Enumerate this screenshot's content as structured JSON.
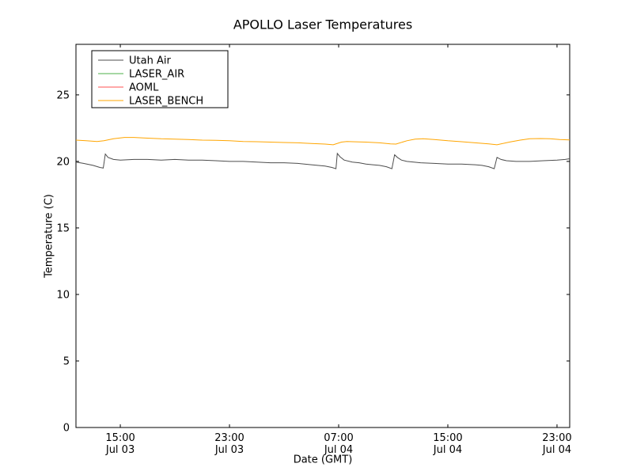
{
  "chart_data": {
    "type": "line",
    "title": "APOLLO Laser Temperatures",
    "xlabel": "Date (GMT)",
    "ylabel": "Temperature (C)",
    "x_unit_note": "hours since Jul 03 00:00 GMT",
    "xlim": [
      11.75,
      47.93
    ],
    "ylim": [
      0,
      28.8
    ],
    "grid": false,
    "legend_position": "upper left",
    "background_color": "#ffffff",
    "axes_color": "#000000",
    "x_ticks": [
      {
        "t": 15,
        "time": "15:00",
        "date": "Jul 03"
      },
      {
        "t": 23,
        "time": "23:00",
        "date": "Jul 03"
      },
      {
        "t": 31,
        "time": "07:00",
        "date": "Jul 04"
      },
      {
        "t": 39,
        "time": "15:00",
        "date": "Jul 04"
      },
      {
        "t": 47,
        "time": "23:00",
        "date": "Jul 04"
      }
    ],
    "y_ticks": [
      0,
      5,
      10,
      15,
      20,
      25
    ],
    "series": [
      {
        "name": "Utah Air",
        "color": "#4d4d4d",
        "points": [
          [
            11.75,
            19.95
          ],
          [
            12.3,
            19.85
          ],
          [
            13.0,
            19.7
          ],
          [
            13.5,
            19.55
          ],
          [
            13.75,
            19.5
          ],
          [
            13.9,
            20.55
          ],
          [
            14.1,
            20.3
          ],
          [
            14.5,
            20.15
          ],
          [
            15.0,
            20.1
          ],
          [
            16,
            20.15
          ],
          [
            17,
            20.15
          ],
          [
            18,
            20.1
          ],
          [
            19,
            20.15
          ],
          [
            20,
            20.1
          ],
          [
            21,
            20.1
          ],
          [
            22,
            20.05
          ],
          [
            23,
            20.0
          ],
          [
            24,
            20.0
          ],
          [
            25,
            19.95
          ],
          [
            26,
            19.9
          ],
          [
            27,
            19.9
          ],
          [
            28,
            19.85
          ],
          [
            29,
            19.75
          ],
          [
            30,
            19.65
          ],
          [
            30.5,
            19.55
          ],
          [
            30.8,
            19.45
          ],
          [
            30.9,
            20.6
          ],
          [
            31.1,
            20.35
          ],
          [
            31.4,
            20.1
          ],
          [
            32,
            19.95
          ],
          [
            32.5,
            19.9
          ],
          [
            33,
            19.8
          ],
          [
            33.5,
            19.75
          ],
          [
            34,
            19.7
          ],
          [
            34.5,
            19.6
          ],
          [
            34.9,
            19.45
          ],
          [
            35.1,
            20.5
          ],
          [
            35.3,
            20.3
          ],
          [
            35.6,
            20.1
          ],
          [
            36,
            20.0
          ],
          [
            36.5,
            19.95
          ],
          [
            37,
            19.9
          ],
          [
            38,
            19.85
          ],
          [
            39,
            19.8
          ],
          [
            40,
            19.8
          ],
          [
            41,
            19.75
          ],
          [
            41.5,
            19.7
          ],
          [
            42,
            19.6
          ],
          [
            42.4,
            19.45
          ],
          [
            42.6,
            20.3
          ],
          [
            42.9,
            20.15
          ],
          [
            43.3,
            20.05
          ],
          [
            44,
            20.0
          ],
          [
            45,
            20.0
          ],
          [
            46,
            20.05
          ],
          [
            47,
            20.1
          ],
          [
            47.6,
            20.15
          ],
          [
            47.93,
            20.2
          ]
        ]
      },
      {
        "name": "LASER_AIR",
        "color": "#4daf4a",
        "points": []
      },
      {
        "name": "AOML",
        "color": "#ff5050",
        "points": []
      },
      {
        "name": "LASER_BENCH",
        "color": "#ffa500",
        "points": [
          [
            11.75,
            21.6
          ],
          [
            12.5,
            21.55
          ],
          [
            13.3,
            21.5
          ],
          [
            13.8,
            21.55
          ],
          [
            14.5,
            21.7
          ],
          [
            15.3,
            21.8
          ],
          [
            16,
            21.8
          ],
          [
            17,
            21.75
          ],
          [
            18,
            21.7
          ],
          [
            19,
            21.68
          ],
          [
            20,
            21.65
          ],
          [
            21,
            21.6
          ],
          [
            22,
            21.58
          ],
          [
            23,
            21.55
          ],
          [
            24,
            21.5
          ],
          [
            25,
            21.48
          ],
          [
            26,
            21.45
          ],
          [
            27,
            21.42
          ],
          [
            28,
            21.4
          ],
          [
            29,
            21.35
          ],
          [
            30,
            21.3
          ],
          [
            30.6,
            21.25
          ],
          [
            31.2,
            21.45
          ],
          [
            31.6,
            21.5
          ],
          [
            32,
            21.48
          ],
          [
            33,
            21.45
          ],
          [
            34,
            21.4
          ],
          [
            34.8,
            21.32
          ],
          [
            35.2,
            21.3
          ],
          [
            36,
            21.55
          ],
          [
            36.6,
            21.68
          ],
          [
            37.2,
            21.7
          ],
          [
            38,
            21.65
          ],
          [
            39,
            21.55
          ],
          [
            40,
            21.48
          ],
          [
            41,
            21.4
          ],
          [
            42,
            21.32
          ],
          [
            42.6,
            21.25
          ],
          [
            43.5,
            21.45
          ],
          [
            44.3,
            21.6
          ],
          [
            45,
            21.7
          ],
          [
            45.8,
            21.72
          ],
          [
            46.5,
            21.7
          ],
          [
            47.2,
            21.65
          ],
          [
            47.93,
            21.62
          ]
        ]
      }
    ]
  }
}
